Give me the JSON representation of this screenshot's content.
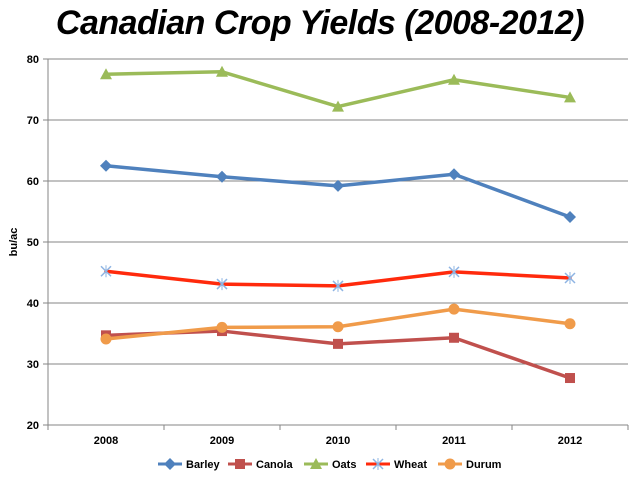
{
  "chart_data": {
    "type": "line",
    "title": "Canadian Crop Yields (2008-2012)",
    "xlabel": "",
    "ylabel": "bu/ac",
    "categories": [
      "2008",
      "2009",
      "2010",
      "2011",
      "2012"
    ],
    "ylim": [
      20,
      80
    ],
    "yticks": [
      "20",
      "30",
      "40",
      "50",
      "60",
      "70",
      "80"
    ],
    "grid": "horizontal",
    "legend": "bottom",
    "series": [
      {
        "name": "Barley",
        "values": [
          62.5,
          60.7,
          59.2,
          61.1,
          54.1
        ],
        "color": "#4f81bd",
        "marker": "diamond"
      },
      {
        "name": "Canola",
        "values": [
          34.7,
          35.4,
          33.3,
          34.3,
          27.7
        ],
        "color": "#c0504d",
        "marker": "square"
      },
      {
        "name": "Oats",
        "values": [
          77.5,
          77.9,
          72.2,
          76.6,
          73.7
        ],
        "color": "#9bbb59",
        "marker": "triangle"
      },
      {
        "name": "Wheat",
        "values": [
          45.2,
          43.1,
          42.8,
          45.1,
          44.1
        ],
        "color": "#ff2a0c",
        "marker": "x"
      },
      {
        "name": "Durum",
        "values": [
          34.1,
          36.0,
          36.1,
          39.0,
          36.6
        ],
        "color": "#f09b4a",
        "marker": "circle"
      }
    ]
  }
}
